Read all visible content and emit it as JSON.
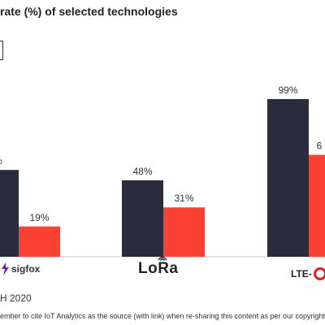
{
  "title": "rate (%) of selected technologies",
  "footer": {
    "date": "H 2020",
    "note": "ember to cite IoT Analytics as the source (with link) when re-sharing this content as per our copyright p"
  },
  "brands": {
    "sigfox": "sigfox",
    "lora": "LoRa",
    "lte": "LTE-"
  },
  "colors": {
    "series_dark": "#282c3b",
    "series_red": "#fa4133",
    "axis": "#c8c8c8"
  },
  "chart_data": {
    "type": "bar",
    "categories": [
      "sigfox",
      "LoRa",
      "LTE-"
    ],
    "ylim": [
      0,
      110
    ],
    "series": [
      {
        "values": [
          null,
          48,
          99
        ],
        "labels": [
          "%",
          "48%",
          "99%"
        ],
        "color": "#282c3b"
      },
      {
        "values": [
          19,
          31,
          null
        ],
        "labels": [
          "19%",
          "31%",
          "6"
        ],
        "color": "#fa4133"
      }
    ]
  }
}
